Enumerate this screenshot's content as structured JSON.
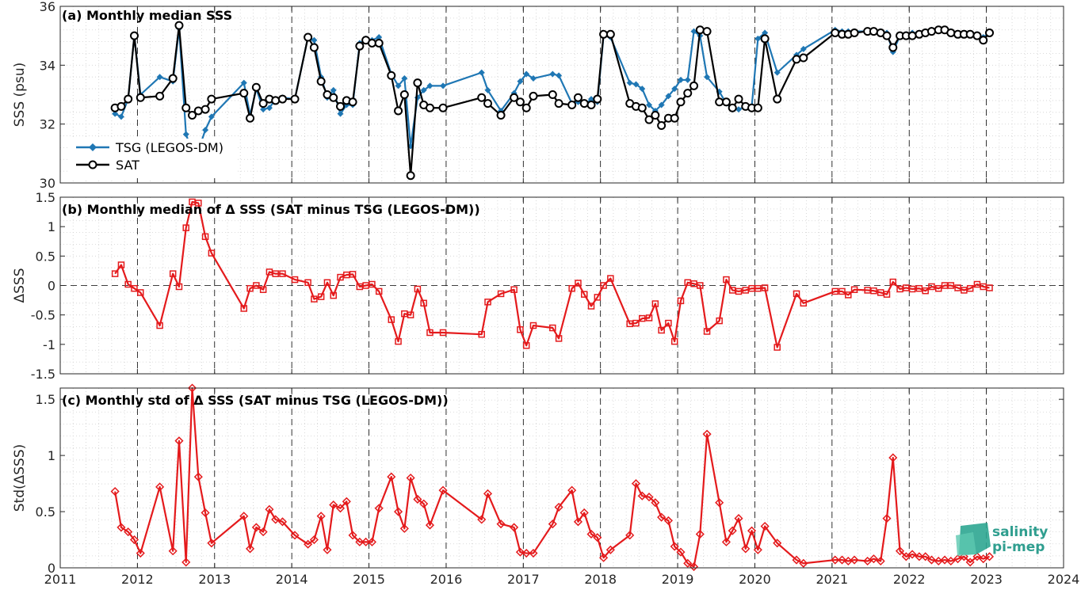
{
  "chart_data": [
    {
      "type": "line",
      "title": "(a) Monthly median SSS",
      "ylabel": "SSS (psu)",
      "xlabel": "",
      "xlim": [
        2011,
        2024
      ],
      "ylim": [
        30,
        36
      ],
      "xticks": [
        "2011",
        "2012",
        "2013",
        "2014",
        "2015",
        "2016",
        "2017",
        "2018",
        "2019",
        "2020",
        "2021",
        "2022",
        "2023",
        "2024"
      ],
      "yticks": [
        "30",
        "32",
        "34",
        "36"
      ],
      "grid": "dotted",
      "legend": "lower-left",
      "series": [
        {
          "name": "TSG (LEGOS-DM)",
          "color": "#1f77b4",
          "marker": "diamond-filled",
          "x": [
            2011.71,
            2011.79,
            2011.88,
            2011.96,
            2012.04,
            2012.29,
            2012.46,
            2012.54,
            2012.63,
            2012.71,
            2012.79,
            2012.88,
            2012.96,
            2013.38,
            2013.46,
            2013.54,
            2013.63,
            2013.71,
            2013.79,
            2013.88,
            2014.04,
            2014.21,
            2014.29,
            2014.38,
            2014.46,
            2014.54,
            2014.63,
            2014.71,
            2014.79,
            2014.88,
            2014.96,
            2015.04,
            2015.13,
            2015.29,
            2015.38,
            2015.46,
            2015.54,
            2015.63,
            2015.71,
            2015.79,
            2015.96,
            2016.46,
            2016.54,
            2016.71,
            2016.88,
            2016.96,
            2017.04,
            2017.13,
            2017.38,
            2017.46,
            2017.63,
            2017.71,
            2017.79,
            2017.88,
            2017.96,
            2018.04,
            2018.13,
            2018.38,
            2018.46,
            2018.54,
            2018.63,
            2018.71,
            2018.79,
            2018.88,
            2018.96,
            2019.04,
            2019.13,
            2019.21,
            2019.29,
            2019.38,
            2019.54,
            2019.63,
            2019.71,
            2019.79,
            2019.88,
            2019.96,
            2020.04,
            2020.13,
            2020.29,
            2020.54,
            2020.63,
            2021.04,
            2021.13,
            2021.21,
            2021.29,
            2021.46,
            2021.54,
            2021.63,
            2021.71,
            2021.79,
            2021.88,
            2021.96,
            2022.04,
            2022.13,
            2022.21,
            2022.29,
            2022.38,
            2022.46,
            2022.54,
            2022.63,
            2022.71,
            2022.79,
            2022.88,
            2022.96,
            2023.04
          ],
          "values": [
            32.35,
            32.25,
            32.85,
            35.0,
            33.0,
            33.6,
            33.45,
            35.25,
            31.65,
            31.05,
            31.1,
            31.8,
            32.25,
            33.4,
            32.3,
            33.2,
            32.5,
            32.55,
            32.85,
            32.9,
            32.85,
            34.95,
            34.85,
            33.6,
            32.9,
            33.15,
            32.35,
            32.65,
            32.65,
            34.75,
            34.9,
            34.85,
            34.95,
            33.7,
            33.3,
            33.55,
            31.25,
            32.9,
            33.15,
            33.3,
            33.3,
            33.75,
            33.15,
            32.45,
            33.05,
            33.45,
            33.7,
            33.55,
            33.7,
            33.65,
            32.7,
            32.75,
            32.65,
            32.85,
            32.75,
            35.0,
            34.95,
            33.4,
            33.35,
            33.2,
            32.65,
            32.45,
            32.65,
            32.95,
            33.2,
            33.5,
            33.5,
            35.15,
            35.0,
            33.6,
            33.1,
            32.7,
            32.5,
            32.5,
            32.6,
            32.6,
            34.9,
            35.1,
            33.75,
            34.35,
            34.55,
            35.2,
            35.15,
            35.15,
            35.15,
            35.15,
            35.15,
            35.15,
            35.1,
            34.45,
            35.0,
            35.05,
            35.1,
            35.1,
            35.15,
            35.2,
            35.2,
            35.2,
            35.15,
            35.05,
            35.05,
            35.05,
            35.05,
            34.95,
            35.1
          ]
        },
        {
          "name": "SAT",
          "color": "#000000",
          "marker": "circle-open",
          "x": [
            2011.71,
            2011.79,
            2011.88,
            2011.96,
            2012.04,
            2012.29,
            2012.46,
            2012.54,
            2012.63,
            2012.71,
            2012.79,
            2012.88,
            2012.96,
            2013.38,
            2013.46,
            2013.54,
            2013.63,
            2013.71,
            2013.79,
            2013.88,
            2014.04,
            2014.21,
            2014.29,
            2014.38,
            2014.46,
            2014.54,
            2014.63,
            2014.71,
            2014.79,
            2014.88,
            2014.96,
            2015.04,
            2015.13,
            2015.29,
            2015.38,
            2015.46,
            2015.54,
            2015.63,
            2015.71,
            2015.79,
            2015.96,
            2016.46,
            2016.54,
            2016.71,
            2016.88,
            2016.96,
            2017.04,
            2017.13,
            2017.38,
            2017.46,
            2017.63,
            2017.71,
            2017.79,
            2017.88,
            2017.96,
            2018.04,
            2018.13,
            2018.38,
            2018.46,
            2018.54,
            2018.63,
            2018.71,
            2018.79,
            2018.88,
            2018.96,
            2019.04,
            2019.13,
            2019.21,
            2019.29,
            2019.38,
            2019.54,
            2019.63,
            2019.71,
            2019.79,
            2019.88,
            2019.96,
            2020.04,
            2020.13,
            2020.29,
            2020.54,
            2020.63,
            2021.04,
            2021.13,
            2021.21,
            2021.29,
            2021.46,
            2021.54,
            2021.63,
            2021.71,
            2021.79,
            2021.88,
            2021.96,
            2022.04,
            2022.13,
            2022.21,
            2022.29,
            2022.38,
            2022.46,
            2022.54,
            2022.63,
            2022.71,
            2022.79,
            2022.88,
            2022.96,
            2023.04
          ],
          "values": [
            32.55,
            32.6,
            32.85,
            35.0,
            32.9,
            32.95,
            33.55,
            35.35,
            32.55,
            32.3,
            32.45,
            32.5,
            32.85,
            33.05,
            32.2,
            33.25,
            32.7,
            32.85,
            32.8,
            32.85,
            32.85,
            34.95,
            34.6,
            33.45,
            33.0,
            32.9,
            32.6,
            32.8,
            32.75,
            34.65,
            34.85,
            34.75,
            34.75,
            33.65,
            32.45,
            33.0,
            30.25,
            33.4,
            32.65,
            32.55,
            32.55,
            32.9,
            32.7,
            32.3,
            32.9,
            32.75,
            32.55,
            32.95,
            33.0,
            32.7,
            32.65,
            32.9,
            32.7,
            32.65,
            32.85,
            35.05,
            35.05,
            32.7,
            32.6,
            32.55,
            32.15,
            32.3,
            31.95,
            32.2,
            32.2,
            32.75,
            33.05,
            33.3,
            35.2,
            35.15,
            32.75,
            32.75,
            32.55,
            32.85,
            32.6,
            32.55,
            32.55,
            34.9,
            32.85,
            34.2,
            34.25,
            35.1,
            35.05,
            35.05,
            35.1,
            35.15,
            35.15,
            35.1,
            35.0,
            34.6,
            35.0,
            35.0,
            35.0,
            35.05,
            35.1,
            35.15,
            35.2,
            35.2,
            35.1,
            35.05,
            35.05,
            35.05,
            35.0,
            34.85,
            35.1
          ]
        }
      ]
    },
    {
      "type": "line",
      "title": "(b) Monthly median of Δ SSS (SAT minus TSG (LEGOS-DM))",
      "ylabel": "ΔSSS",
      "xlabel": "",
      "xlim": [
        2011,
        2024
      ],
      "ylim": [
        -1.5,
        1.5
      ],
      "xticks": [
        "2011",
        "2012",
        "2013",
        "2014",
        "2015",
        "2016",
        "2017",
        "2018",
        "2019",
        "2020",
        "2021",
        "2022",
        "2023",
        "2024"
      ],
      "yticks": [
        "-1.5",
        "-1",
        "-0.5",
        "0",
        "0.5",
        "1",
        "1.5"
      ],
      "grid": "dotted",
      "reference_line": 0,
      "series": [
        {
          "color": "#e41a1c",
          "marker": "square-open",
          "x": [
            2011.71,
            2011.79,
            2011.88,
            2011.96,
            2012.04,
            2012.29,
            2012.46,
            2012.54,
            2012.63,
            2012.71,
            2012.79,
            2012.88,
            2012.96,
            2013.38,
            2013.46,
            2013.54,
            2013.63,
            2013.71,
            2013.79,
            2013.88,
            2014.04,
            2014.21,
            2014.29,
            2014.38,
            2014.46,
            2014.54,
            2014.63,
            2014.71,
            2014.79,
            2014.88,
            2014.96,
            2015.04,
            2015.13,
            2015.29,
            2015.38,
            2015.46,
            2015.54,
            2015.63,
            2015.71,
            2015.79,
            2015.96,
            2016.46,
            2016.54,
            2016.71,
            2016.88,
            2016.96,
            2017.04,
            2017.13,
            2017.38,
            2017.46,
            2017.63,
            2017.71,
            2017.79,
            2017.88,
            2017.96,
            2018.04,
            2018.13,
            2018.38,
            2018.46,
            2018.54,
            2018.63,
            2018.71,
            2018.79,
            2018.88,
            2018.96,
            2019.04,
            2019.13,
            2019.21,
            2019.29,
            2019.38,
            2019.54,
            2019.63,
            2019.71,
            2019.79,
            2019.88,
            2019.96,
            2020.04,
            2020.13,
            2020.29,
            2020.54,
            2020.63,
            2021.04,
            2021.13,
            2021.21,
            2021.29,
            2021.46,
            2021.54,
            2021.63,
            2021.71,
            2021.79,
            2021.88,
            2021.96,
            2022.04,
            2022.13,
            2022.21,
            2022.29,
            2022.38,
            2022.46,
            2022.54,
            2022.63,
            2022.71,
            2022.79,
            2022.88,
            2022.96,
            2023.04
          ],
          "values": [
            0.2,
            0.35,
            0.02,
            -0.05,
            -0.12,
            -0.68,
            0.2,
            -0.02,
            0.98,
            1.42,
            1.4,
            0.83,
            0.55,
            -0.39,
            -0.05,
            0.0,
            -0.07,
            0.23,
            0.2,
            0.2,
            0.1,
            0.05,
            -0.23,
            -0.19,
            0.05,
            -0.17,
            0.14,
            0.18,
            0.19,
            -0.02,
            0.0,
            0.02,
            -0.1,
            -0.58,
            -0.95,
            -0.48,
            -0.5,
            -0.06,
            -0.3,
            -0.8,
            -0.8,
            -0.83,
            -0.28,
            -0.14,
            -0.07,
            -0.75,
            -1.02,
            -0.68,
            -0.72,
            -0.9,
            -0.05,
            0.04,
            -0.15,
            -0.35,
            -0.2,
            0.0,
            0.12,
            -0.65,
            -0.64,
            -0.56,
            -0.55,
            -0.31,
            -0.76,
            -0.64,
            -0.95,
            -0.26,
            0.05,
            0.03,
            0.0,
            -0.78,
            -0.6,
            0.1,
            -0.08,
            -0.1,
            -0.08,
            -0.05,
            -0.05,
            -0.04,
            -1.05,
            -0.14,
            -0.3,
            -0.1,
            -0.1,
            -0.16,
            -0.07,
            -0.08,
            -0.09,
            -0.12,
            -0.15,
            0.06,
            -0.06,
            -0.04,
            -0.06,
            -0.05,
            -0.09,
            -0.02,
            -0.05,
            0.0,
            0.0,
            -0.04,
            -0.08,
            -0.05,
            0.02,
            -0.02,
            -0.04
          ]
        }
      ]
    },
    {
      "type": "line",
      "title": "(c) Monthly std of Δ SSS (SAT minus TSG (LEGOS-DM))",
      "ylabel": "Std(ΔSSS)",
      "xlabel": "",
      "xlim": [
        2011,
        2024
      ],
      "ylim": [
        0,
        1.6
      ],
      "xticks": [
        "2011",
        "2012",
        "2013",
        "2014",
        "2015",
        "2016",
        "2017",
        "2018",
        "2019",
        "2020",
        "2021",
        "2022",
        "2023",
        "2024"
      ],
      "yticks": [
        "0",
        "0.5",
        "1",
        "1.5"
      ],
      "grid": "dotted",
      "series": [
        {
          "color": "#e41a1c",
          "marker": "diamond-open",
          "x": [
            2011.71,
            2011.79,
            2011.88,
            2011.96,
            2012.04,
            2012.29,
            2012.46,
            2012.54,
            2012.63,
            2012.71,
            2012.79,
            2012.88,
            2012.96,
            2013.38,
            2013.46,
            2013.54,
            2013.63,
            2013.71,
            2013.79,
            2013.88,
            2014.04,
            2014.21,
            2014.29,
            2014.38,
            2014.46,
            2014.54,
            2014.63,
            2014.71,
            2014.79,
            2014.88,
            2014.96,
            2015.04,
            2015.13,
            2015.29,
            2015.38,
            2015.46,
            2015.54,
            2015.63,
            2015.71,
            2015.79,
            2015.96,
            2016.46,
            2016.54,
            2016.71,
            2016.88,
            2016.96,
            2017.04,
            2017.13,
            2017.38,
            2017.46,
            2017.63,
            2017.71,
            2017.79,
            2017.88,
            2017.96,
            2018.04,
            2018.13,
            2018.38,
            2018.46,
            2018.54,
            2018.63,
            2018.71,
            2018.79,
            2018.88,
            2018.96,
            2019.04,
            2019.13,
            2019.21,
            2019.29,
            2019.38,
            2019.54,
            2019.63,
            2019.71,
            2019.79,
            2019.88,
            2019.96,
            2020.04,
            2020.13,
            2020.29,
            2020.54,
            2020.63,
            2021.04,
            2021.13,
            2021.21,
            2021.29,
            2021.46,
            2021.54,
            2021.63,
            2021.71,
            2021.79,
            2021.88,
            2021.96,
            2022.04,
            2022.13,
            2022.21,
            2022.29,
            2022.38,
            2022.46,
            2022.54,
            2022.63,
            2022.71,
            2022.79,
            2022.88,
            2022.96,
            2023.04
          ],
          "values": [
            0.68,
            0.36,
            0.32,
            0.25,
            0.13,
            0.72,
            0.15,
            1.13,
            0.05,
            1.6,
            0.81,
            0.49,
            0.22,
            0.46,
            0.17,
            0.36,
            0.32,
            0.52,
            0.43,
            0.41,
            0.29,
            0.21,
            0.25,
            0.46,
            0.16,
            0.56,
            0.53,
            0.59,
            0.29,
            0.23,
            0.23,
            0.23,
            0.53,
            0.81,
            0.5,
            0.35,
            0.8,
            0.61,
            0.57,
            0.38,
            0.69,
            0.43,
            0.66,
            0.39,
            0.36,
            0.14,
            0.13,
            0.13,
            0.39,
            0.54,
            0.69,
            0.41,
            0.49,
            0.3,
            0.27,
            0.09,
            0.16,
            0.29,
            0.75,
            0.64,
            0.63,
            0.58,
            0.45,
            0.42,
            0.19,
            0.14,
            0.04,
            0.01,
            0.3,
            1.19,
            0.58,
            0.23,
            0.33,
            0.44,
            0.17,
            0.33,
            0.16,
            0.37,
            0.22,
            0.07,
            0.04,
            0.07,
            0.07,
            0.06,
            0.07,
            0.06,
            0.08,
            0.06,
            0.44,
            0.98,
            0.15,
            0.1,
            0.12,
            0.1,
            0.1,
            0.07,
            0.06,
            0.07,
            0.06,
            0.08,
            0.1,
            0.05,
            0.1,
            0.08,
            0.1
          ]
        }
      ]
    }
  ],
  "legend": {
    "tsg_label": "TSG (LEGOS-DM)",
    "sat_label": "SAT"
  },
  "logo": {
    "line1": "salinity",
    "line2": "pi-mep"
  }
}
